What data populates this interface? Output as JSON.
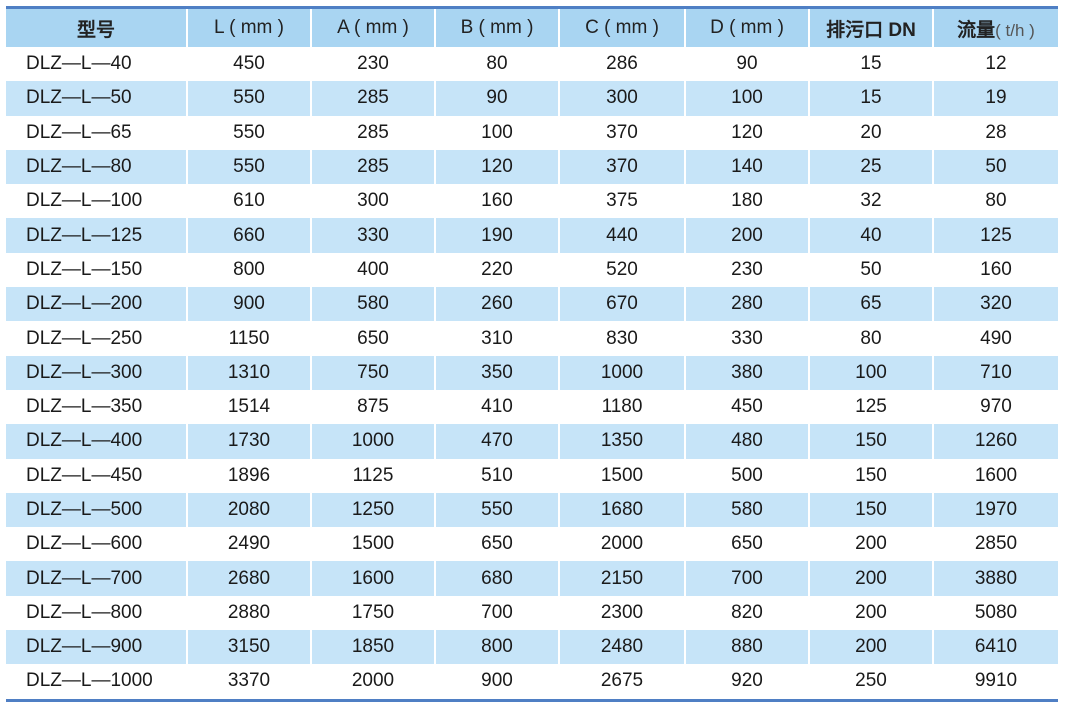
{
  "table": {
    "headers": [
      "型号",
      "L ( mm )",
      "A ( mm )",
      "B ( mm )",
      "C ( mm )",
      "D ( mm )",
      "排污口 DN",
      "流量"
    ],
    "flow_unit": "( t/h )",
    "rows": [
      [
        "DLZ—L—40",
        "450",
        "230",
        "80",
        "286",
        "90",
        "15",
        "12"
      ],
      [
        "DLZ—L—50",
        "550",
        "285",
        "90",
        "300",
        "100",
        "15",
        "19"
      ],
      [
        "DLZ—L—65",
        "550",
        "285",
        "100",
        "370",
        "120",
        "20",
        "28"
      ],
      [
        "DLZ—L—80",
        "550",
        "285",
        "120",
        "370",
        "140",
        "25",
        "50"
      ],
      [
        "DLZ—L—100",
        "610",
        "300",
        "160",
        "375",
        "180",
        "32",
        "80"
      ],
      [
        "DLZ—L—125",
        "660",
        "330",
        "190",
        "440",
        "200",
        "40",
        "125"
      ],
      [
        "DLZ—L—150",
        "800",
        "400",
        "220",
        "520",
        "230",
        "50",
        "160"
      ],
      [
        "DLZ—L—200",
        "900",
        "580",
        "260",
        "670",
        "280",
        "65",
        "320"
      ],
      [
        "DLZ—L—250",
        "1150",
        "650",
        "310",
        "830",
        "330",
        "80",
        "490"
      ],
      [
        "DLZ—L—300",
        "1310",
        "750",
        "350",
        "1000",
        "380",
        "100",
        "710"
      ],
      [
        "DLZ—L—350",
        "1514",
        "875",
        "410",
        "1180",
        "450",
        "125",
        "970"
      ],
      [
        "DLZ—L—400",
        "1730",
        "1000",
        "470",
        "1350",
        "480",
        "150",
        "1260"
      ],
      [
        "DLZ—L—450",
        "1896",
        "1125",
        "510",
        "1500",
        "500",
        "150",
        "1600"
      ],
      [
        "DLZ—L—500",
        "2080",
        "1250",
        "550",
        "1680",
        "580",
        "150",
        "1970"
      ],
      [
        "DLZ—L—600",
        "2490",
        "1500",
        "650",
        "2000",
        "650",
        "200",
        "2850"
      ],
      [
        "DLZ—L—700",
        "2680",
        "1600",
        "680",
        "2150",
        "700",
        "200",
        "3880"
      ],
      [
        "DLZ—L—800",
        "2880",
        "1750",
        "700",
        "2300",
        "820",
        "200",
        "5080"
      ],
      [
        "DLZ—L—900",
        "3150",
        "1850",
        "800",
        "2480",
        "880",
        "200",
        "6410"
      ],
      [
        "DLZ—L—1000",
        "3370",
        "2000",
        "900",
        "2675",
        "920",
        "250",
        "9910"
      ]
    ]
  },
  "colors": {
    "header_bg": "#a9d5f2",
    "alt_row_bg": "#c6e4f8",
    "rule": "#4f7fc4"
  }
}
